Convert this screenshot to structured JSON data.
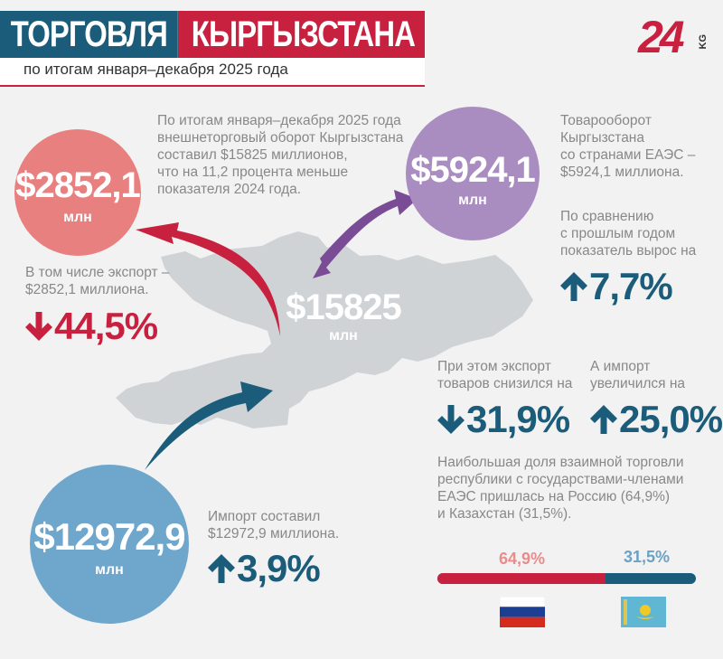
{
  "header": {
    "title_left": "ТОРГОВЛЯ",
    "title_right": "КЫРГЫЗСТАНА",
    "subtitle": "по итогам января–декабря 2025 года",
    "logo_number": "24",
    "logo_suffix": "KG"
  },
  "total": {
    "value": "$15825",
    "unit": "млн",
    "description_lines": [
      "По итогам января–декабря 2025 года",
      "внешнеторговый оборот Кыргызстана",
      "составил $15825 миллионов,",
      "что на 11,2 процента меньше",
      "показателя 2024 года."
    ]
  },
  "export": {
    "value": "$2852,1",
    "unit": "млн",
    "description_lines": [
      "В том числе экспорт –",
      "$2852,1 миллиона."
    ],
    "change": "44,5%",
    "direction": "down"
  },
  "import": {
    "value": "$12972,9",
    "unit": "млн",
    "description_lines": [
      "Импорт составил",
      "$12972,9 миллиона."
    ],
    "change": "3,9%",
    "direction": "up"
  },
  "eaeu": {
    "value": "$5924,1",
    "unit": "млн",
    "description_lines": [
      "Товарооборот",
      "Кыргызстана",
      "со странами ЕАЭС –",
      "$5924,1 миллиона."
    ],
    "growth_lines": [
      "По сравнению",
      "с прошлым годом",
      "показатель вырос на"
    ],
    "growth": "7,7%",
    "export_lines": [
      "При этом экспорт",
      "товаров снизился на"
    ],
    "export_change": "31,9%",
    "import_lines": [
      "А импорт",
      "увеличился на"
    ],
    "import_change": "25,0%",
    "share_lines": [
      "Наибольшая доля взаимной торговли",
      "республики с государствами-членами",
      "ЕАЭС пришлась на Россию (64,9%)",
      "и Казахстан (31,5%)."
    ],
    "share_russia": "64,9%",
    "share_kazakhstan": "31,5%"
  },
  "colors": {
    "teal": "#1a5c7a",
    "red": "#c8213f",
    "export_circle": "#e98080",
    "eaeu_circle": "#a98cc0",
    "import_circle": "#6fa6cc",
    "map": "#cfd3d6"
  }
}
